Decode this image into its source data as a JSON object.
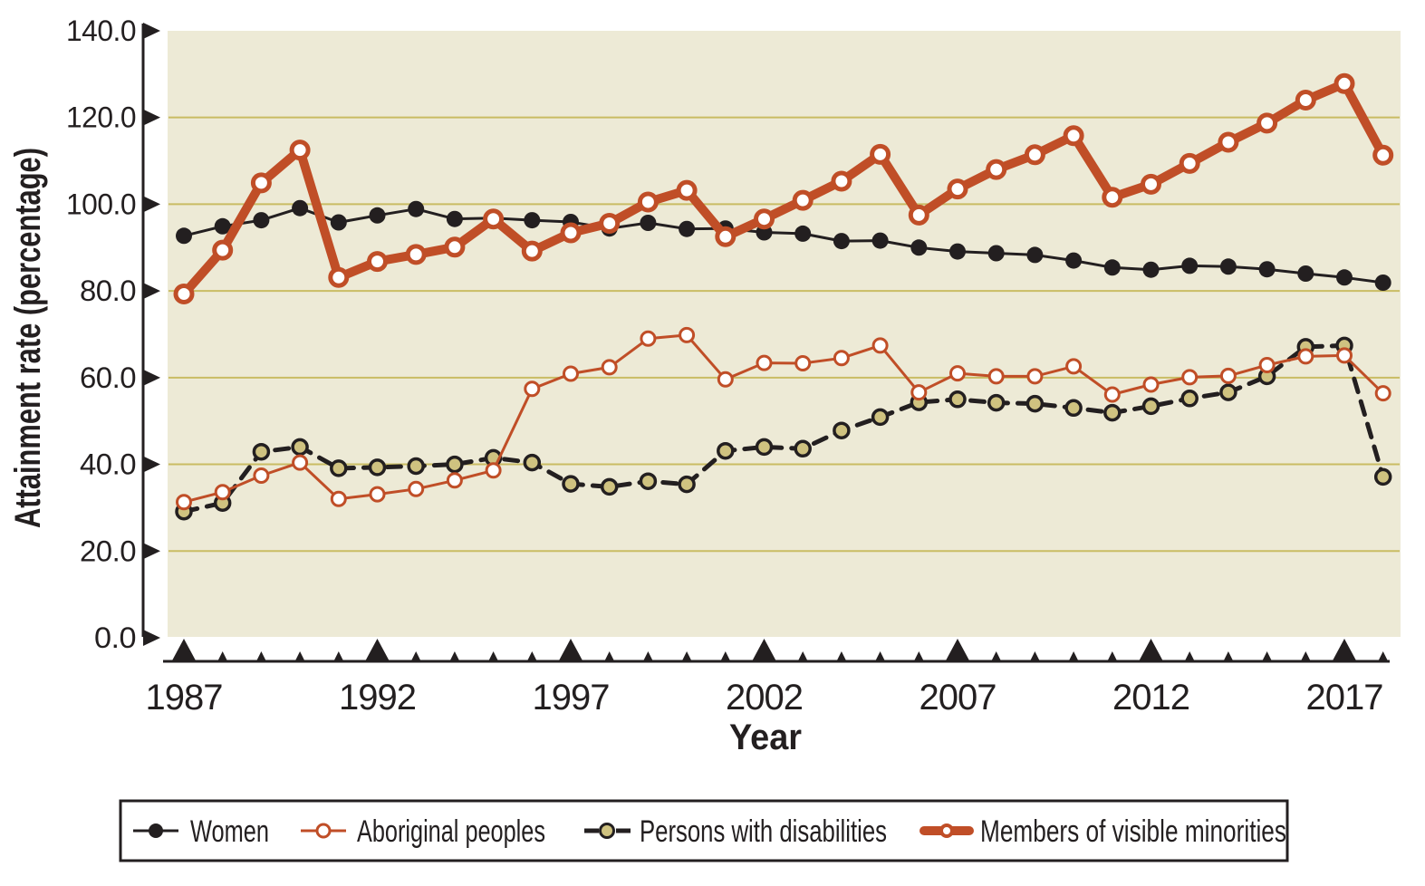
{
  "y_axis": {
    "title": "Attainment rate (percentage)",
    "tick_labels": [
      "140.0",
      "120.0",
      "100.0",
      "80.0",
      "60.0",
      "40.0",
      "20.0",
      "0.0"
    ]
  },
  "x_axis": {
    "title": "Year",
    "tick_labels": [
      "1987",
      "1992",
      "1997",
      "2002",
      "2007",
      "2012",
      "2017"
    ]
  },
  "legend": {
    "items": [
      {
        "label": "Women"
      },
      {
        "label": "Aboriginal peoples"
      },
      {
        "label": "Persons with disabilities"
      },
      {
        "label": "Members of visible minorities"
      }
    ]
  },
  "colors": {
    "plot_background": "#edead6",
    "gridline": "#c9bc63",
    "black_series": "#231f20",
    "orange_series": "#c04e27",
    "disabilities_marker_fill": "#cfc280",
    "open_marker_fill": "#ffffff",
    "legend_border": "#231f20",
    "page_background": "#ffffff"
  },
  "chart_data": {
    "type": "line",
    "title": "",
    "xlabel": "Year",
    "ylabel": "Attainment rate (percentage)",
    "ylim": [
      0,
      140
    ],
    "xlim": [
      1987,
      2018
    ],
    "grid": "horizontal gridlines every 20 units",
    "legend_position": "bottom",
    "x": [
      1987,
      1988,
      1989,
      1990,
      1991,
      1992,
      1993,
      1994,
      1995,
      1996,
      1997,
      1998,
      1999,
      2000,
      2001,
      2002,
      2003,
      2004,
      2005,
      2006,
      2007,
      2008,
      2009,
      2010,
      2011,
      2012,
      2013,
      2014,
      2015,
      2016,
      2017,
      2018
    ],
    "series": [
      {
        "name": "Women",
        "line": "solid",
        "marker": "filled-black-circle",
        "values": [
          92.7,
          94.9,
          96.3,
          99.1,
          95.8,
          97.4,
          98.9,
          96.6,
          96.8,
          96.3,
          95.9,
          94.4,
          95.7,
          94.3,
          94.4,
          93.5,
          93.2,
          91.5,
          91.6,
          90.0,
          89.1,
          88.7,
          88.3,
          87.0,
          85.4,
          84.9,
          85.8,
          85.6,
          85.0,
          84.0,
          83.1,
          81.9
        ]
      },
      {
        "name": "Aboriginal peoples",
        "line": "thin-solid",
        "marker": "open-circle",
        "values": [
          31.3,
          33.6,
          37.4,
          40.4,
          32.0,
          33.1,
          34.3,
          36.3,
          38.6,
          57.4,
          60.9,
          62.4,
          69.0,
          69.8,
          59.6,
          63.4,
          63.3,
          64.5,
          67.4,
          56.6,
          61.0,
          60.3,
          60.3,
          62.6,
          56.1,
          58.4,
          60.1,
          60.4,
          62.9,
          64.9,
          65.1,
          56.4
        ]
      },
      {
        "name": "Persons with disabilities",
        "line": "dashed",
        "marker": "olive-filled-circle",
        "values": [
          29.1,
          31.1,
          42.9,
          44.0,
          39.1,
          39.3,
          39.6,
          40.0,
          41.5,
          40.4,
          35.5,
          34.8,
          36.1,
          35.4,
          43.1,
          44.0,
          43.6,
          47.8,
          50.9,
          54.3,
          55.0,
          54.2,
          54.0,
          53.0,
          51.9,
          53.4,
          55.2,
          56.6,
          60.3,
          67.1,
          67.4,
          37.1
        ]
      },
      {
        "name": "Members of visible minorities",
        "line": "thick-solid",
        "marker": "open-circle",
        "values": [
          79.3,
          89.4,
          104.9,
          112.5,
          83.1,
          86.8,
          88.4,
          90.1,
          96.6,
          89.2,
          93.4,
          95.6,
          100.5,
          103.2,
          92.5,
          96.6,
          100.9,
          105.3,
          111.5,
          97.5,
          103.5,
          108.0,
          111.4,
          115.8,
          101.6,
          104.6,
          109.4,
          114.3,
          118.7,
          124.0,
          127.8,
          111.3
        ]
      }
    ]
  }
}
